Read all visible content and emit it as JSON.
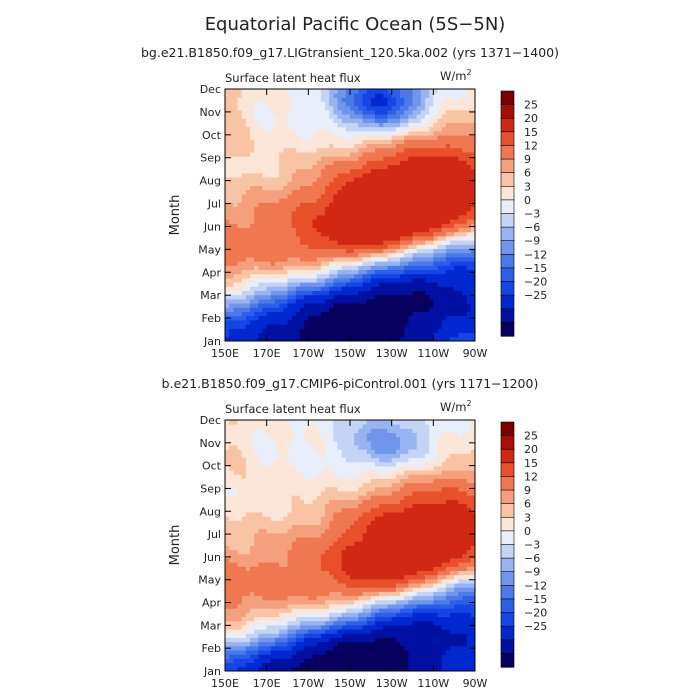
{
  "figure": {
    "title": "Equatorial Pacific Ocean (5S−5N)"
  },
  "colors": {
    "levels_palette": [
      "#08005f",
      "#0010a0",
      "#0028d0",
      "#1446e6",
      "#2c5ee8",
      "#4a7ae8",
      "#7096ec",
      "#98b4f0",
      "#c4d4f4",
      "#e8eefa",
      "#fbe6d8",
      "#f8c4a4",
      "#f4a07c",
      "#f07850",
      "#e8502c",
      "#d02812",
      "#a80e04",
      "#7a0000"
    ]
  },
  "chart_data": [
    {
      "type": "heatmap",
      "title": "bg.e21.B1850.f09_g17.LIGtransient_120.5ka.002 (yrs 1371−1400)",
      "variable": "Surface latent heat flux",
      "units": "W/m",
      "units_sup": "2",
      "ylabel": "Month",
      "x_ticks": [
        "150E",
        "170E",
        "170W",
        "150W",
        "130W",
        "110W",
        "90W"
      ],
      "y_ticks": [
        "Jan",
        "Feb",
        "Mar",
        "Apr",
        "May",
        "Jun",
        "Jul",
        "Aug",
        "Sep",
        "Oct",
        "Nov",
        "Dec"
      ],
      "colorbar_levels": [
        "25",
        "20",
        "15",
        "12",
        "9",
        "6",
        "3",
        "0",
        "−3",
        "−6",
        "−9",
        "−12",
        "−15",
        "−20",
        "−25"
      ],
      "contour_levels": [
        -25,
        -20,
        -15,
        -12,
        -9,
        -6,
        -3,
        0,
        3,
        6,
        9,
        12,
        15,
        20,
        25
      ],
      "model": {
        "lon_range": [
          150,
          270
        ],
        "shift_start": 1.8,
        "shift_slope": 2.6,
        "pos_max": 32,
        "pos_lon": 235,
        "pos_width": 40,
        "neg_min": -24,
        "neg_lon": 215,
        "neg_width": 55,
        "dec_feature": -10,
        "dec_lon": 225,
        "dec_month_center": 10.5,
        "west_offset": 4
      }
    },
    {
      "type": "heatmap",
      "title": "b.e21.B1850.f09_g17.CMIP6-piControl.001 (yrs 1171−1200)",
      "variable": "Surface latent heat flux",
      "units": "W/m",
      "units_sup": "2",
      "ylabel": "Month",
      "x_ticks": [
        "150E",
        "170E",
        "170W",
        "150W",
        "130W",
        "110W",
        "90W"
      ],
      "y_ticks": [
        "Jan",
        "Feb",
        "Mar",
        "Apr",
        "May",
        "Jun",
        "Jul",
        "Aug",
        "Sep",
        "Oct",
        "Nov",
        "Dec"
      ],
      "colorbar_levels": [
        "25",
        "20",
        "15",
        "12",
        "9",
        "6",
        "3",
        "0",
        "−3",
        "−6",
        "−9",
        "−12",
        "−15",
        "−20",
        "−25"
      ],
      "contour_levels": [
        -25,
        -20,
        -15,
        -12,
        -9,
        -6,
        -3,
        0,
        3,
        6,
        9,
        12,
        15,
        20,
        25
      ],
      "model": {
        "lon_range": [
          150,
          270
        ],
        "shift_start": 1.2,
        "shift_slope": 2.7,
        "pos_max": 28,
        "pos_lon": 240,
        "pos_width": 35,
        "neg_min": -25,
        "neg_lon": 210,
        "neg_width": 55,
        "dec_feature": -5,
        "dec_lon": 228,
        "dec_month_center": 10.0,
        "west_offset": 3
      }
    }
  ]
}
